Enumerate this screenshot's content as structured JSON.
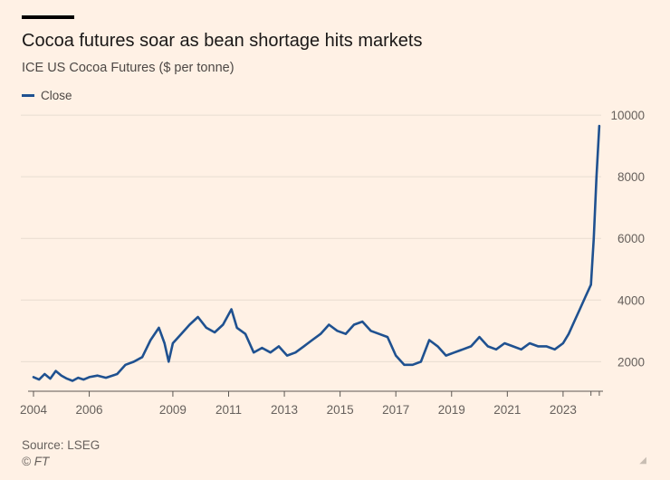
{
  "header": {
    "title": "Cocoa futures soar as bean shortage hits markets",
    "subtitle": "ICE US Cocoa Futures ($ per tonne)"
  },
  "legend": {
    "label": "Close"
  },
  "footer": {
    "source": "Source: LSEG",
    "credit": "© FT"
  },
  "colors": {
    "background": "#fff1e5",
    "series": "#1f5190",
    "grid": "#e8dcd0"
  },
  "chart_data": {
    "type": "line",
    "title": "Cocoa futures soar as bean shortage hits markets",
    "subtitle": "ICE US Cocoa Futures ($ per tonne)",
    "xlabel": "",
    "ylabel": "$ per tonne",
    "xlim": [
      2004,
      2024.4
    ],
    "ylim": [
      1100,
      10150
    ],
    "grid": true,
    "legend_position": "top-left",
    "yticks": [
      2000,
      4000,
      6000,
      8000,
      10000
    ],
    "yticklabels": [
      "2000",
      "4000",
      "6000",
      "8000",
      "10000"
    ],
    "xticks": [
      2004,
      2006,
      2009,
      2011,
      2013,
      2015,
      2017,
      2019,
      2021,
      2023
    ],
    "xticklabels": [
      "2004",
      "2006",
      "2009",
      "2011",
      "2013",
      "2015",
      "2017",
      "2019",
      "2021",
      "2023"
    ],
    "series": [
      {
        "name": "Close",
        "x": [
          2004.0,
          2004.2,
          2004.4,
          2004.6,
          2004.8,
          2005.0,
          2005.2,
          2005.4,
          2005.6,
          2005.8,
          2006.0,
          2006.3,
          2006.6,
          2007.0,
          2007.3,
          2007.6,
          2007.9,
          2008.2,
          2008.5,
          2008.7,
          2008.85,
          2009.0,
          2009.3,
          2009.6,
          2009.9,
          2010.2,
          2010.5,
          2010.8,
          2011.1,
          2011.3,
          2011.6,
          2011.9,
          2012.2,
          2012.5,
          2012.8,
          2013.1,
          2013.4,
          2013.7,
          2014.0,
          2014.3,
          2014.6,
          2014.9,
          2015.2,
          2015.5,
          2015.8,
          2016.1,
          2016.4,
          2016.7,
          2017.0,
          2017.3,
          2017.6,
          2017.9,
          2018.2,
          2018.5,
          2018.8,
          2019.1,
          2019.4,
          2019.7,
          2020.0,
          2020.3,
          2020.6,
          2020.9,
          2021.2,
          2021.5,
          2021.8,
          2022.1,
          2022.4,
          2022.7,
          2023.0,
          2023.2,
          2023.4,
          2023.6,
          2023.8,
          2024.0,
          2024.1,
          2024.2,
          2024.3
        ],
        "values": [
          1500,
          1420,
          1600,
          1450,
          1700,
          1550,
          1450,
          1380,
          1480,
          1420,
          1500,
          1550,
          1480,
          1600,
          1900,
          2000,
          2150,
          2700,
          3100,
          2600,
          2000,
          2600,
          2900,
          3200,
          3450,
          3100,
          2950,
          3200,
          3700,
          3100,
          2900,
          2300,
          2450,
          2300,
          2500,
          2200,
          2300,
          2500,
          2700,
          2900,
          3200,
          3000,
          2900,
          3200,
          3300,
          3000,
          2900,
          2800,
          2200,
          1900,
          1900,
          2000,
          2700,
          2500,
          2200,
          2300,
          2400,
          2500,
          2800,
          2500,
          2400,
          2600,
          2500,
          2400,
          2600,
          2500,
          2500,
          2400,
          2600,
          2900,
          3300,
          3700,
          4100,
          4500,
          6000,
          8000,
          9650
        ]
      }
    ]
  }
}
